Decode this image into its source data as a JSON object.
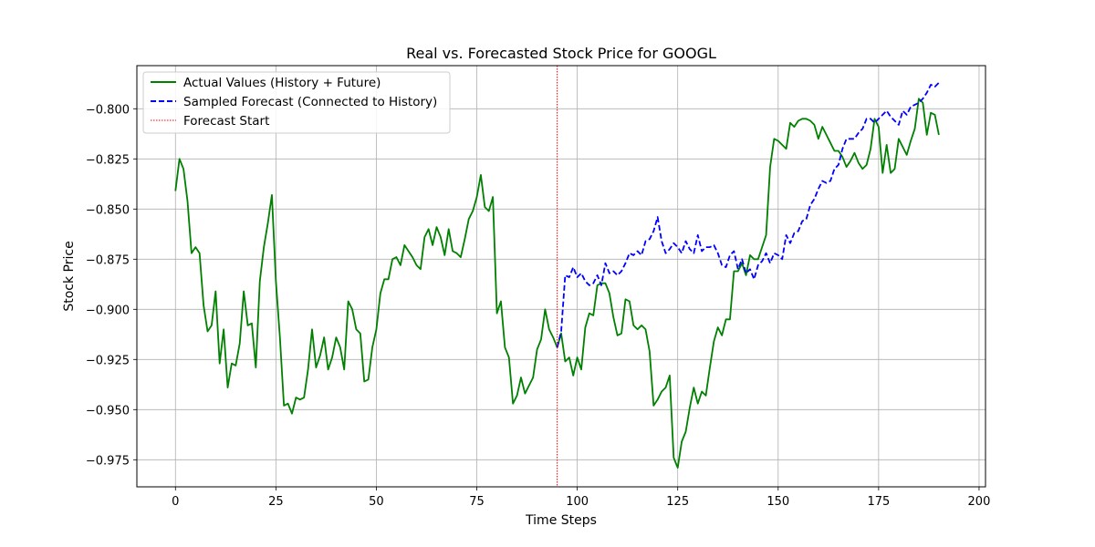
{
  "chart_data": {
    "type": "line",
    "title": "Real vs. Forecasted Stock Price for GOOGL",
    "xlabel": "Time Steps",
    "ylabel": "Stock Price",
    "xlim": [
      -9.6,
      201.6
    ],
    "ylim": [
      -0.9885,
      -0.7785
    ],
    "xticks": [
      0,
      25,
      50,
      75,
      100,
      125,
      150,
      175,
      200
    ],
    "yticks": [
      -0.975,
      -0.95,
      -0.925,
      -0.9,
      -0.875,
      -0.85,
      -0.825,
      -0.8
    ],
    "ytick_labels": [
      "−0.975",
      "−0.950",
      "−0.925",
      "−0.900",
      "−0.875",
      "−0.850",
      "−0.825",
      "−0.800"
    ],
    "grid": true,
    "legend_position": "top-left",
    "forecast_start": 95,
    "colors": {
      "actual": "#008000",
      "forecast": "#0000ff",
      "forecast_start": "#ff0000"
    },
    "series": [
      {
        "name": "Actual Values (History + Future)",
        "style": "solid",
        "values": [
          -0.841,
          -0.825,
          -0.83,
          -0.846,
          -0.872,
          -0.869,
          -0.872,
          -0.898,
          -0.911,
          -0.908,
          -0.891,
          -0.927,
          -0.91,
          -0.939,
          -0.927,
          -0.928,
          -0.917,
          -0.891,
          -0.908,
          -0.907,
          -0.929,
          -0.886,
          -0.869,
          -0.857,
          -0.843,
          -0.886,
          -0.914,
          -0.948,
          -0.947,
          -0.952,
          -0.944,
          -0.945,
          -0.944,
          -0.93,
          -0.91,
          -0.929,
          -0.923,
          -0.914,
          -0.93,
          -0.924,
          -0.914,
          -0.919,
          -0.93,
          -0.896,
          -0.9,
          -0.91,
          -0.912,
          -0.936,
          -0.935,
          -0.919,
          -0.91,
          -0.892,
          -0.885,
          -0.885,
          -0.875,
          -0.874,
          -0.878,
          -0.868,
          -0.871,
          -0.874,
          -0.878,
          -0.88,
          -0.864,
          -0.86,
          -0.868,
          -0.859,
          -0.864,
          -0.873,
          -0.86,
          -0.871,
          -0.872,
          -0.874,
          -0.865,
          -0.855,
          -0.851,
          -0.844,
          -0.833,
          -0.849,
          -0.851,
          -0.844,
          -0.902,
          -0.896,
          -0.919,
          -0.924,
          -0.947,
          -0.943,
          -0.934,
          -0.942,
          -0.938,
          -0.934,
          -0.92,
          -0.915,
          -0.9,
          -0.91,
          -0.914,
          -0.919,
          -0.912,
          -0.926,
          -0.924,
          -0.933,
          -0.924,
          -0.93,
          -0.909,
          -0.902,
          -0.903,
          -0.888,
          -0.887,
          -0.887,
          -0.892,
          -0.904,
          -0.913,
          -0.912,
          -0.895,
          -0.896,
          -0.908,
          -0.91,
          -0.908,
          -0.91,
          -0.921,
          -0.948,
          -0.945,
          -0.941,
          -0.939,
          -0.933,
          -0.974,
          -0.979,
          -0.966,
          -0.961,
          -0.949,
          -0.939,
          -0.947,
          -0.941,
          -0.943,
          -0.929,
          -0.916,
          -0.909,
          -0.913,
          -0.905,
          -0.905,
          -0.881,
          -0.881,
          -0.877,
          -0.883,
          -0.873,
          -0.875,
          -0.875,
          -0.869,
          -0.863,
          -0.829,
          -0.815,
          -0.816,
          -0.818,
          -0.82,
          -0.807,
          -0.809,
          -0.806,
          -0.805,
          -0.805,
          -0.806,
          -0.808,
          -0.815,
          -0.809,
          -0.813,
          -0.817,
          -0.821,
          -0.821,
          -0.824,
          -0.829,
          -0.826,
          -0.822,
          -0.827,
          -0.83,
          -0.828,
          -0.82,
          -0.805,
          -0.809,
          -0.832,
          -0.818,
          -0.832,
          -0.83,
          -0.815,
          -0.819,
          -0.823,
          -0.816,
          -0.81,
          -0.795,
          -0.797,
          -0.813,
          -0.802,
          -0.803,
          -0.813
        ]
      },
      {
        "name": "Sampled Forecast (Connected to History)",
        "style": "dashed",
        "x_start": 95,
        "values": [
          -0.919,
          -0.911,
          -0.883,
          -0.884,
          -0.879,
          -0.884,
          -0.882,
          -0.886,
          -0.888,
          -0.887,
          -0.883,
          -0.888,
          -0.877,
          -0.882,
          -0.881,
          -0.883,
          -0.881,
          -0.877,
          -0.872,
          -0.873,
          -0.871,
          -0.873,
          -0.866,
          -0.865,
          -0.861,
          -0.854,
          -0.866,
          -0.872,
          -0.87,
          -0.867,
          -0.869,
          -0.872,
          -0.866,
          -0.87,
          -0.872,
          -0.863,
          -0.871,
          -0.869,
          -0.869,
          -0.868,
          -0.872,
          -0.878,
          -0.879,
          -0.873,
          -0.871,
          -0.88,
          -0.875,
          -0.882,
          -0.88,
          -0.885,
          -0.878,
          -0.876,
          -0.872,
          -0.877,
          -0.872,
          -0.873,
          -0.875,
          -0.863,
          -0.867,
          -0.862,
          -0.861,
          -0.856,
          -0.855,
          -0.848,
          -0.845,
          -0.84,
          -0.836,
          -0.837,
          -0.836,
          -0.83,
          -0.828,
          -0.82,
          -0.815,
          -0.815,
          -0.815,
          -0.812,
          -0.81,
          -0.805,
          -0.805,
          -0.807,
          -0.805,
          -0.803,
          -0.801,
          -0.804,
          -0.806,
          -0.808,
          -0.801,
          -0.803,
          -0.799,
          -0.798,
          -0.797,
          -0.795,
          -0.792,
          -0.788,
          -0.789,
          -0.787
        ]
      },
      {
        "name": "Forecast Start",
        "style": "dotted"
      }
    ]
  }
}
